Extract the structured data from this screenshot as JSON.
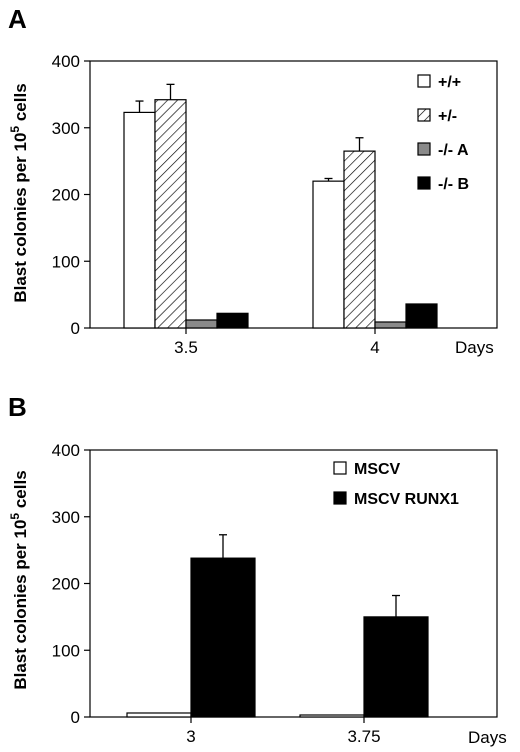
{
  "panels": [
    {
      "letter": "A",
      "chart_data": {
        "type": "bar",
        "categories": [
          "3.5",
          "4"
        ],
        "xlabel": "Days",
        "ylabel_main": "Blast colonies per 10",
        "ylabel_sup": "5",
        "ylabel_tail": " cells",
        "ylim": [
          0,
          400
        ],
        "yticks": [
          0,
          100,
          200,
          300,
          400
        ],
        "legend_position": "top-right",
        "series": [
          {
            "name": "+/+",
            "fill": "white",
            "values": [
              323,
              220
            ],
            "errors": [
              17,
              4
            ]
          },
          {
            "name": "+/-",
            "fill": "hatch",
            "values": [
              342,
              265
            ],
            "errors": [
              23,
              20
            ]
          },
          {
            "name": "-/- A",
            "fill": "gray",
            "values": [
              12,
              9
            ],
            "errors": [
              0,
              0
            ]
          },
          {
            "name": "-/- B",
            "fill": "black",
            "values": [
              22,
              36
            ],
            "errors": [
              0,
              0
            ]
          }
        ]
      }
    },
    {
      "letter": "B",
      "chart_data": {
        "type": "bar",
        "categories": [
          "3",
          "3.75"
        ],
        "xlabel": "Days",
        "ylabel_main": "Blast colonies per 10",
        "ylabel_sup": "5",
        "ylabel_tail": " cells",
        "ylim": [
          0,
          400
        ],
        "yticks": [
          0,
          100,
          200,
          300,
          400
        ],
        "legend_position": "top-right",
        "series": [
          {
            "name": "MSCV",
            "fill": "white",
            "values": [
              6,
              3
            ],
            "errors": [
              0,
              0
            ]
          },
          {
            "name": "MSCV RUNX1",
            "fill": "black",
            "values": [
              238,
              150
            ],
            "errors": [
              35,
              32
            ]
          }
        ]
      }
    }
  ]
}
